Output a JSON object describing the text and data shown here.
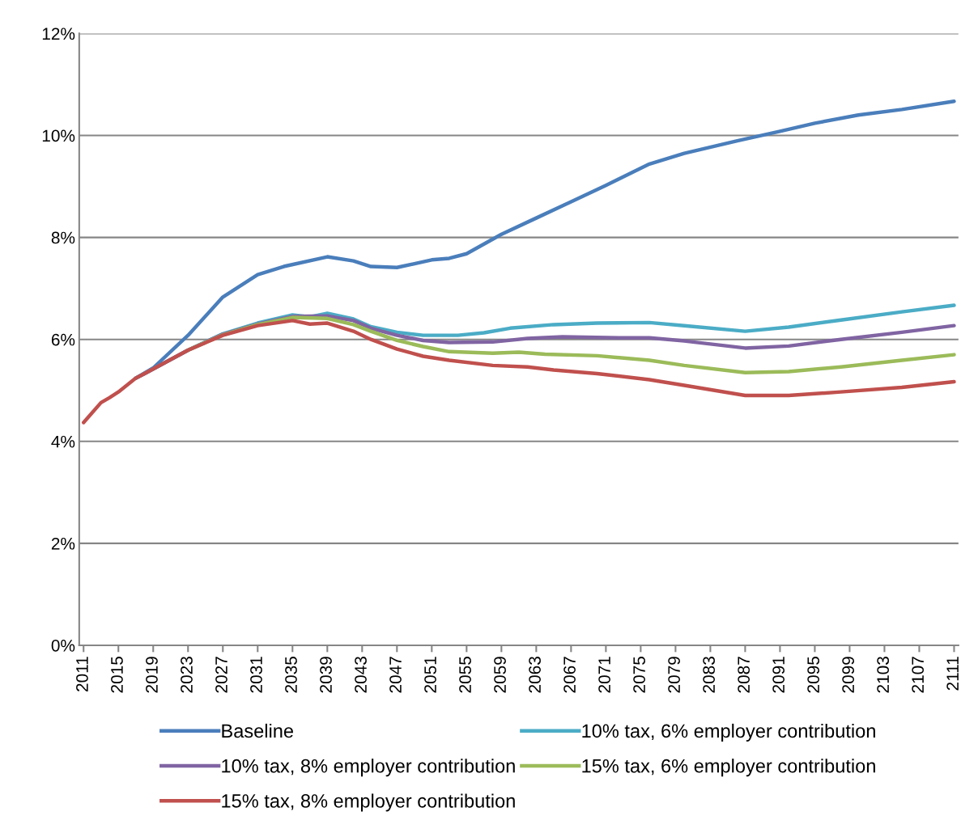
{
  "chart_data": {
    "type": "line",
    "xlim": [
      2010.5,
      2111.5
    ],
    "xticks": [
      2011,
      2015,
      2019,
      2023,
      2027,
      2031,
      2035,
      2039,
      2043,
      2047,
      2051,
      2055,
      2059,
      2063,
      2067,
      2071,
      2075,
      2079,
      2083,
      2087,
      2091,
      2095,
      2099,
      2103,
      2107,
      2111
    ],
    "ylim": [
      0,
      12
    ],
    "yticks": [
      {
        "value": 0,
        "label": "0%"
      },
      {
        "value": 2,
        "label": "2%"
      },
      {
        "value": 4,
        "label": "4%"
      },
      {
        "value": 6,
        "label": "6%"
      },
      {
        "value": 8,
        "label": "8%"
      },
      {
        "value": 10,
        "label": "10%"
      },
      {
        "value": 12,
        "label": "12%"
      }
    ],
    "grid": "y",
    "legend": "bottom",
    "marker": "none",
    "line_style": "solid",
    "series": [
      {
        "name": "Baseline",
        "color": "#4a7ebb",
        "x": [
          2017,
          2019,
          2023,
          2027,
          2031,
          2034,
          2039,
          2042,
          2044,
          2047,
          2051,
          2053,
          2055,
          2059,
          2063,
          2067,
          2071,
          2076,
          2080,
          2086,
          2091,
          2095,
          2100,
          2105,
          2111
        ],
        "values": [
          5.24,
          5.44,
          6.08,
          6.83,
          7.27,
          7.43,
          7.62,
          7.54,
          7.43,
          7.41,
          7.56,
          7.59,
          7.68,
          8.06,
          8.38,
          8.7,
          9.02,
          9.44,
          9.65,
          9.89,
          10.08,
          10.24,
          10.4,
          10.51,
          10.67
        ]
      },
      {
        "name": "10% tax, 6% employer contribution",
        "color": "#4bacc6",
        "x": [
          2017,
          2018,
          2023,
          2027,
          2031,
          2035,
          2037,
          2039,
          2042,
          2044,
          2047,
          2050,
          2054,
          2057,
          2060,
          2065,
          2070,
          2076,
          2080,
          2087,
          2092,
          2098,
          2105,
          2111
        ],
        "values": [
          5.24,
          5.33,
          5.79,
          6.11,
          6.32,
          6.48,
          6.44,
          6.51,
          6.4,
          6.25,
          6.14,
          6.08,
          6.08,
          6.13,
          6.22,
          6.29,
          6.32,
          6.33,
          6.27,
          6.16,
          6.24,
          6.38,
          6.54,
          6.67
        ]
      },
      {
        "name": "10% tax, 8% employer contribution",
        "color": "#8064a2",
        "x": [
          2017,
          2018,
          2023,
          2027,
          2031,
          2035,
          2039,
          2042,
          2044,
          2047,
          2050,
          2053,
          2058,
          2062,
          2066,
          2073,
          2076,
          2080,
          2087,
          2092,
          2098,
          2105,
          2111
        ],
        "values": [
          5.24,
          5.33,
          5.79,
          6.1,
          6.3,
          6.45,
          6.46,
          6.37,
          6.22,
          6.08,
          5.98,
          5.94,
          5.95,
          6.02,
          6.05,
          6.03,
          6.03,
          5.97,
          5.83,
          5.87,
          6.0,
          6.14,
          6.27
        ]
      },
      {
        "name": "15% tax, 6% employer contribution",
        "color": "#9bbb59",
        "x": [
          2023,
          2027,
          2031,
          2035,
          2039,
          2042,
          2044,
          2047,
          2050,
          2053,
          2058,
          2061,
          2064,
          2070,
          2076,
          2080,
          2087,
          2092,
          2098,
          2105,
          2111
        ],
        "values": [
          5.79,
          6.09,
          6.29,
          6.43,
          6.41,
          6.29,
          6.16,
          5.98,
          5.86,
          5.76,
          5.73,
          5.75,
          5.71,
          5.68,
          5.59,
          5.49,
          5.35,
          5.37,
          5.46,
          5.59,
          5.7
        ]
      },
      {
        "name": "15% tax, 8% employer contribution",
        "color": "#c0504d",
        "x": [
          2011,
          2013,
          2014,
          2015,
          2017,
          2018,
          2023,
          2027,
          2031,
          2035,
          2037,
          2039,
          2042,
          2044,
          2047,
          2050,
          2053,
          2058,
          2062,
          2065,
          2070,
          2076,
          2080,
          2087,
          2092,
          2098,
          2105,
          2111
        ],
        "values": [
          4.37,
          4.76,
          4.86,
          4.97,
          5.24,
          5.33,
          5.79,
          6.08,
          6.27,
          6.37,
          6.3,
          6.32,
          6.16,
          6.0,
          5.81,
          5.67,
          5.59,
          5.49,
          5.46,
          5.4,
          5.33,
          5.21,
          5.1,
          4.9,
          4.9,
          4.97,
          5.06,
          5.17
        ]
      }
    ]
  }
}
